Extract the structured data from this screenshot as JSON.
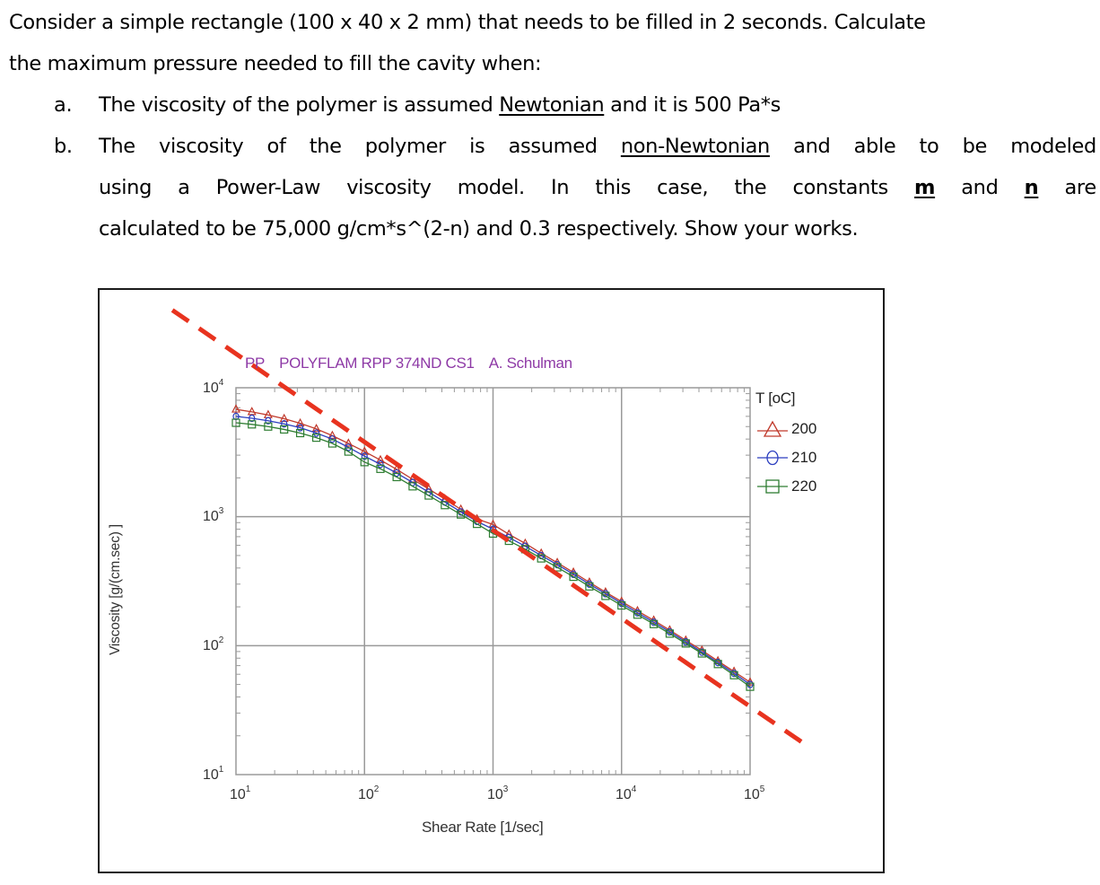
{
  "question": {
    "intro_line1": "Consider a simple rectangle (100 x 40 x 2 mm) that needs to be filled in 2 seconds. Calculate",
    "intro_line2": "the maximum pressure needed to fill the cavity when:",
    "items": [
      {
        "marker": "a.",
        "text_before": "The viscosity of the polymer is assumed ",
        "underlined": "Newtonian",
        "text_after": " and it is 500 Pa*s"
      },
      {
        "marker": "b.",
        "line1_words": [
          "The",
          "viscosity",
          "of",
          "the",
          "polymer",
          "is",
          "assumed",
          "non-Newtonian",
          "and",
          "able",
          "to",
          "be",
          "modeled"
        ],
        "line1_underlined_index": 7,
        "line2_words": [
          "using",
          "a",
          "Power-Law",
          "viscosity",
          "model.",
          "In",
          "this",
          "case,",
          "the",
          "constants",
          "m",
          "and",
          "n",
          "are"
        ],
        "line2_bold_underlined_indices": [
          10,
          12
        ],
        "line3": "calculated to be 75,000 g/cm*s^(2-n) and 0.3 respectively. Show your works."
      }
    ]
  },
  "figure": {
    "title_parts": [
      "PP",
      "POLYFLAM RPP 374ND CS1",
      "A. Schulman"
    ],
    "xlabel": "Shear Rate [1/sec]",
    "ylabel": "Viscosity [g/(cm.sec) ]",
    "x_ticks": [
      {
        "base": "10",
        "exp": "1"
      },
      {
        "base": "10",
        "exp": "2"
      },
      {
        "base": "10",
        "exp": "3"
      },
      {
        "base": "10",
        "exp": "4"
      },
      {
        "base": "10",
        "exp": "5"
      }
    ],
    "y_ticks": [
      {
        "base": "10",
        "exp": "4"
      },
      {
        "base": "10",
        "exp": "3"
      },
      {
        "base": "10",
        "exp": "2"
      },
      {
        "base": "10",
        "exp": "1"
      }
    ],
    "legend_title": "T [oC]",
    "legend": [
      {
        "label": "200",
        "color": "#c0392b",
        "marker": "triangle"
      },
      {
        "label": "210",
        "color": "#2c3fbf",
        "marker": "circle"
      },
      {
        "label": "220",
        "color": "#2e7d32",
        "marker": "square"
      }
    ],
    "annotation_line_color": "#e8331f"
  },
  "chart_data": {
    "type": "line",
    "title": "PP POLYFLAM RPP 374ND CS1 A. Schulman",
    "xlabel": "Shear Rate [1/sec]",
    "ylabel": "Viscosity [g/(cm.sec) ]",
    "xscale": "log",
    "yscale": "log",
    "xlim": [
      10,
      100000
    ],
    "ylim": [
      10,
      10000
    ],
    "grid": true,
    "legend_title": "T [oC]",
    "legend_position": "right",
    "x": [
      10,
      13.3,
      17.8,
      23.7,
      31.6,
      42.2,
      56.2,
      75,
      100,
      133,
      178,
      237,
      316,
      422,
      562,
      750,
      1000,
      1330,
      1780,
      2370,
      3160,
      4220,
      5620,
      7500,
      10000,
      13300,
      17800,
      23700,
      31600,
      42200,
      56200,
      75000,
      100000
    ],
    "series": [
      {
        "name": "200",
        "marker": "triangle",
        "color": "#c0392b",
        "values": [
          6800,
          6500,
          6150,
          5750,
          5300,
          4800,
          4250,
          3700,
          3200,
          2750,
          2330,
          1950,
          1640,
          1370,
          1140,
          960,
          870,
          730,
          620,
          520,
          440,
          370,
          310,
          260,
          220,
          186,
          157,
          132,
          110,
          92,
          76,
          63,
          52
        ]
      },
      {
        "name": "210",
        "marker": "circle",
        "color": "#2c3fbf",
        "values": [
          6000,
          5800,
          5550,
          5250,
          4900,
          4450,
          4000,
          3450,
          2950,
          2550,
          2180,
          1840,
          1550,
          1300,
          1090,
          920,
          800,
          690,
          590,
          500,
          425,
          358,
          300,
          253,
          213,
          180,
          152,
          128,
          107,
          89,
          74,
          61,
          50
        ]
      },
      {
        "name": "220",
        "marker": "square",
        "color": "#2e7d32",
        "values": [
          5350,
          5200,
          5000,
          4750,
          4450,
          4100,
          3700,
          3200,
          2650,
          2350,
          2030,
          1720,
          1460,
          1230,
          1040,
          880,
          740,
          650,
          560,
          475,
          405,
          342,
          288,
          243,
          205,
          174,
          147,
          124,
          104,
          87,
          72,
          59,
          48
        ]
      }
    ],
    "annotations": [
      {
        "type": "dashed_line",
        "color": "#e8331f",
        "description": "power-law fit line extending beyond plot area",
        "from": {
          "x": 3.2,
          "y": 40000
        },
        "to": {
          "x": 250000,
          "y": 18
        }
      }
    ]
  }
}
